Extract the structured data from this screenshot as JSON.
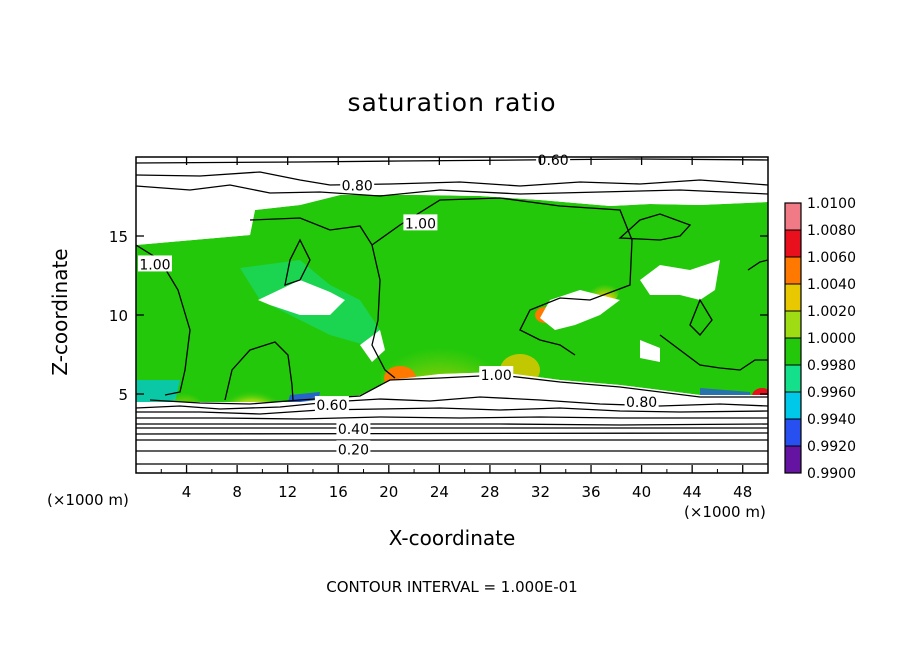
{
  "chart_data": {
    "type": "heatmap",
    "title": "saturation ratio",
    "xlabel": "X-coordinate",
    "ylabel": "Z-coordinate",
    "x_unit_left": "(×1000 m)",
    "x_unit_right": "(×1000 m)",
    "footer": "CONTOUR INTERVAL = 1.000E-01",
    "xlim": [
      0,
      50
    ],
    "ylim": [
      0,
      20
    ],
    "x_ticks": [
      4,
      8,
      12,
      16,
      20,
      24,
      28,
      32,
      36,
      40,
      44,
      48
    ],
    "x_tick_labels": [
      "4",
      "8",
      "12",
      "16",
      "20",
      "24",
      "28",
      "32",
      "36",
      "40",
      "44",
      "48"
    ],
    "y_ticks": [
      5,
      10,
      15
    ],
    "y_tick_labels": [
      "5",
      "10",
      "15"
    ],
    "colorbar": {
      "min": 0.99,
      "max": 1.01,
      "labels": [
        "1.0100",
        "1.0080",
        "1.0060",
        "1.0040",
        "1.0020",
        "1.0000",
        "0.9980",
        "0.9960",
        "0.9940",
        "0.9920",
        "0.9900"
      ],
      "colors": [
        "#f07a86",
        "#e8101c",
        "#ff7800",
        "#e8c800",
        "#a0dc14",
        "#24c80a",
        "#14e08c",
        "#00c8e8",
        "#2850f0",
        "#0000c8",
        "#6414a0"
      ]
    },
    "contour_labels": [
      {
        "text": "0.60",
        "x": 33.0,
        "y": 19.8
      },
      {
        "text": "0.80",
        "x": 17.5,
        "y": 18.2
      },
      {
        "text": "1.00",
        "x": 22.5,
        "y": 15.8
      },
      {
        "text": "1.00",
        "x": 1.5,
        "y": 13.2
      },
      {
        "text": "1.00",
        "x": 28.5,
        "y": 6.2
      },
      {
        "text": "0.80",
        "x": 40.0,
        "y": 4.5
      },
      {
        "text": "0.60",
        "x": 15.5,
        "y": 4.3
      },
      {
        "text": "0.40",
        "x": 17.2,
        "y": 2.8
      },
      {
        "text": "0.20",
        "x": 17.2,
        "y": 1.5
      }
    ]
  }
}
